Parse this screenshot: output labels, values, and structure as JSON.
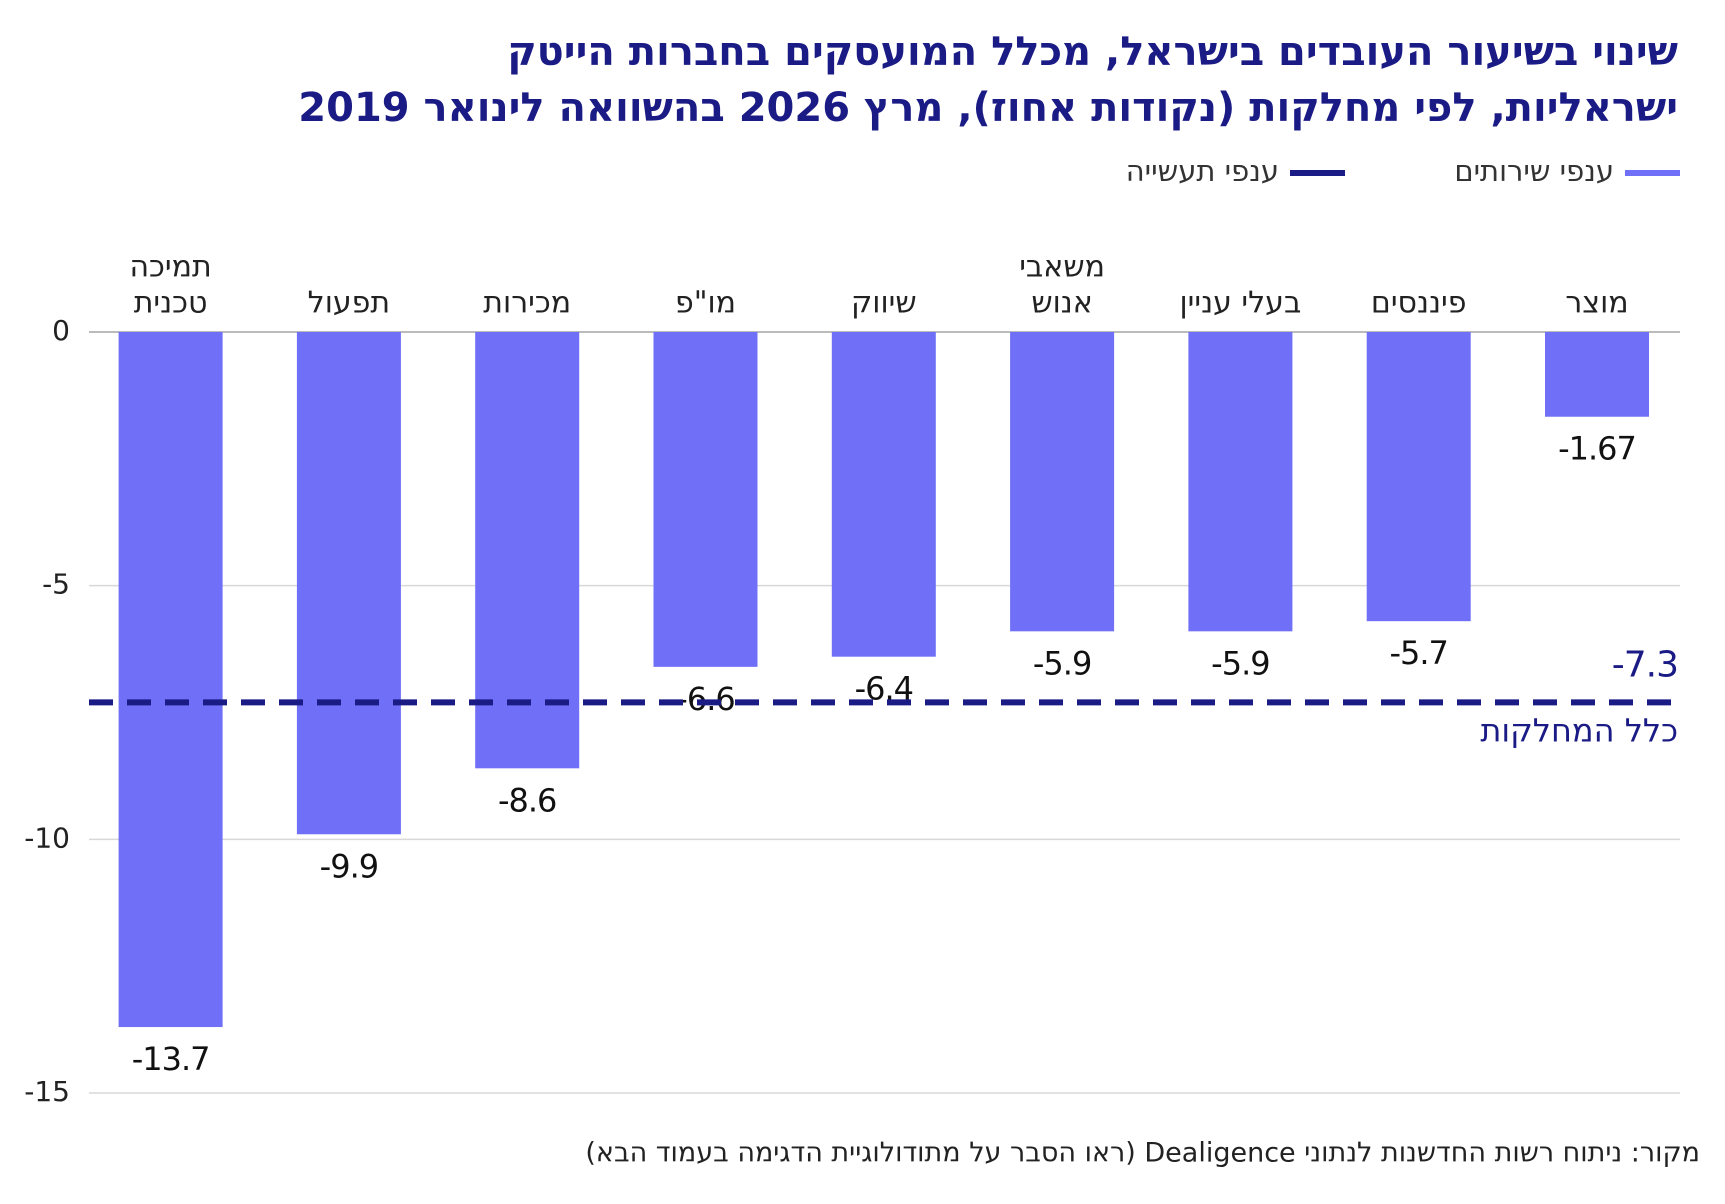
{
  "chart_data": {
    "type": "bar",
    "title": [
      "שינוי בשיעור העובדים בישראל, מכלל המועסקים בחברות הייטק",
      "ישראליות, לפי מחלקות (נקודות אחוז), מרץ 2026 בהשוואה לינואר 2019"
    ],
    "categories": [
      [
        "מוצר"
      ],
      [
        "פיננסים"
      ],
      [
        "בעלי עניין"
      ],
      [
        "משאבי",
        "אנוש"
      ],
      [
        "שיווק"
      ],
      [
        "מו\"פ"
      ],
      [
        "מכירות"
      ],
      [
        "תפעול"
      ],
      [
        "תמיכה",
        "טכנית"
      ]
    ],
    "series": [
      {
        "name": "ענפי שירותים",
        "color": "#6f6ff7",
        "values": [
          -1.67,
          -5.7,
          -5.9,
          -5.9,
          -6.4,
          -6.6,
          -8.6,
          -9.9,
          -13.7
        ]
      }
    ],
    "reference_line": {
      "name": "ענפי תעשייה",
      "color": "#1b1b86",
      "value": -7.3,
      "label": "כלל המחלקות"
    },
    "ylim": [
      -15,
      0
    ],
    "yticks": [
      0,
      -5,
      -10,
      -15
    ],
    "grid": true,
    "legend": "top-right",
    "source": "מקור: ניתוח רשות החדשנות לנתוני Dealigence (ראו הסבר על מתודולוגיית הדגימה בעמוד הבא)"
  }
}
